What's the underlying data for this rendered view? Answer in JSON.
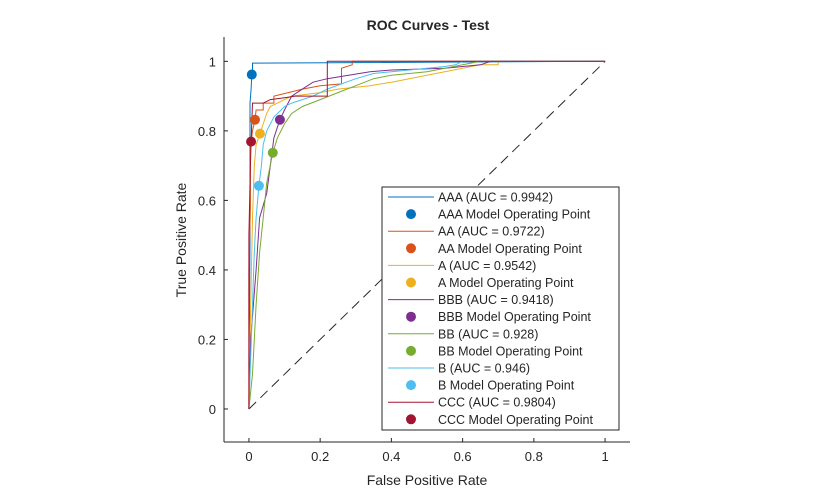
{
  "chart_data": {
    "type": "line",
    "title": "ROC Curves - Test",
    "xlabel": "False Positive Rate",
    "ylabel": "True Positive Rate",
    "xlim": [
      -0.07,
      1.07
    ],
    "ylim": [
      -0.095,
      1.07
    ],
    "xticks": [
      0,
      0.2,
      0.4,
      0.6,
      0.8,
      1
    ],
    "xtick_labels": [
      "0",
      "0.2",
      "0.4",
      "0.6",
      "0.8",
      "1"
    ],
    "yticks": [
      0,
      0.2,
      0.4,
      0.6,
      0.8,
      1
    ],
    "ytick_labels": [
      "0",
      "0.2",
      "0.4",
      "0.6",
      "0.8",
      "1"
    ],
    "grid": false,
    "legend_position": "bottom-right",
    "diagonal": {
      "x": [
        0,
        1
      ],
      "y": [
        0,
        1
      ],
      "style": "dashed",
      "color": "#262626"
    },
    "series": [
      {
        "name": "AAA (AUC = 0.9942)",
        "auc": 0.9942,
        "color": "#0072BD",
        "x": [
          0,
          0.003,
          0.003,
          0.006,
          0.008,
          0.01,
          0.01,
          0.012,
          1
        ],
        "y": [
          0,
          0.5,
          0.88,
          0.92,
          0.962,
          0.97,
          0.995,
          0.995,
          1
        ],
        "operating_point": {
          "label": "AAA Model Operating Point",
          "x": 0.008,
          "y": 0.962
        }
      },
      {
        "name": "AA (AUC = 0.9722)",
        "auc": 0.9722,
        "color": "#D95319",
        "x": [
          0,
          0,
          0.004,
          0.004,
          0.01,
          0.017,
          0.02,
          0.04,
          0.04,
          0.07,
          0.07,
          0.15,
          0.2,
          0.26,
          0.26,
          0.29,
          0.29,
          1
        ],
        "y": [
          0,
          0.4,
          0.58,
          0.75,
          0.8,
          0.832,
          0.86,
          0.86,
          0.88,
          0.88,
          0.9,
          0.92,
          0.93,
          0.935,
          0.98,
          0.99,
          1,
          1
        ],
        "operating_point": {
          "label": "AA Model Operating Point",
          "x": 0.017,
          "y": 0.832
        }
      },
      {
        "name": "A (AUC = 0.9542)",
        "auc": 0.9542,
        "color": "#EDB120",
        "x": [
          0,
          0.005,
          0.01,
          0.015,
          0.02,
          0.031,
          0.04,
          0.05,
          0.06,
          0.1,
          0.12,
          0.2,
          0.25,
          0.34,
          0.4,
          0.45,
          0.55,
          0.6,
          0.65,
          0.7,
          0.7,
          1
        ],
        "y": [
          0,
          0.3,
          0.55,
          0.7,
          0.76,
          0.792,
          0.82,
          0.85,
          0.87,
          0.89,
          0.9,
          0.91,
          0.92,
          0.93,
          0.94,
          0.95,
          0.97,
          0.98,
          0.99,
          0.99,
          1,
          1
        ],
        "operating_point": {
          "label": "A Model Operating Point",
          "x": 0.031,
          "y": 0.792
        }
      },
      {
        "name": "BBB (AUC = 0.9418)",
        "auc": 0.9418,
        "color": "#7E2F8E",
        "x": [
          0,
          0.005,
          0.02,
          0.03,
          0.05,
          0.06,
          0.07,
          0.087,
          0.1,
          0.12,
          0.15,
          0.18,
          0.22,
          0.28,
          0.34,
          0.4,
          0.55,
          0.65,
          0.68,
          1
        ],
        "y": [
          0,
          0.2,
          0.4,
          0.55,
          0.62,
          0.7,
          0.78,
          0.832,
          0.86,
          0.9,
          0.92,
          0.94,
          0.95,
          0.96,
          0.97,
          0.975,
          0.98,
          0.99,
          1,
          1
        ],
        "operating_point": {
          "label": "BBB Model Operating Point",
          "x": 0.087,
          "y": 0.832
        }
      },
      {
        "name": "BB (AUC = 0.928)",
        "auc": 0.928,
        "color": "#77AC30",
        "x": [
          0,
          0.01,
          0.02,
          0.03,
          0.04,
          0.05,
          0.067,
          0.08,
          0.1,
          0.12,
          0.15,
          0.2,
          0.25,
          0.3,
          0.35,
          0.4,
          0.5,
          0.55,
          0.6,
          0.65,
          1
        ],
        "y": [
          0,
          0.1,
          0.3,
          0.45,
          0.55,
          0.65,
          0.737,
          0.78,
          0.82,
          0.85,
          0.87,
          0.89,
          0.91,
          0.93,
          0.95,
          0.96,
          0.97,
          0.98,
          0.99,
          1,
          1
        ],
        "operating_point": {
          "label": "BB Model Operating Point",
          "x": 0.067,
          "y": 0.737
        }
      },
      {
        "name": "B (AUC = 0.946)",
        "auc": 0.946,
        "color": "#4DBEEE",
        "x": [
          0,
          0.01,
          0.015,
          0.02,
          0.028,
          0.035,
          0.04,
          0.05,
          0.07,
          0.1,
          0.12,
          0.18,
          0.22,
          0.3,
          0.35,
          0.45,
          0.55,
          0.58,
          0.6,
          1
        ],
        "y": [
          0,
          0.3,
          0.45,
          0.55,
          0.642,
          0.7,
          0.76,
          0.8,
          0.84,
          0.87,
          0.88,
          0.9,
          0.92,
          0.95,
          0.965,
          0.975,
          0.985,
          0.99,
          1,
          1
        ],
        "operating_point": {
          "label": "B Model Operating Point",
          "x": 0.028,
          "y": 0.642
        }
      },
      {
        "name": "CCC (AUC = 0.9804)",
        "auc": 0.9804,
        "color": "#A2142F",
        "x": [
          0,
          0,
          0.004,
          0.006,
          0.01,
          0.04,
          0.06,
          0.1,
          0.13,
          0.22,
          0.22,
          1
        ],
        "y": [
          0,
          0.5,
          0.7,
          0.769,
          0.88,
          0.88,
          0.89,
          0.895,
          0.9,
          0.9,
          1,
          1
        ],
        "operating_point": {
          "label": "CCC Model Operating Point",
          "x": 0.006,
          "y": 0.769
        }
      }
    ]
  }
}
